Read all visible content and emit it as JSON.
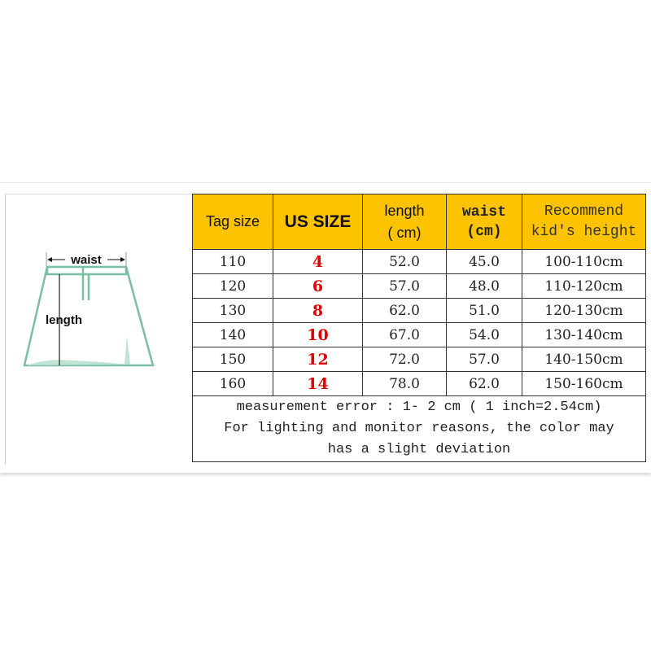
{
  "diagram": {
    "waist_label": "waist",
    "length_label": "length",
    "accent_color": "#7bbfa3"
  },
  "table": {
    "headers": {
      "tag_size": "Tag size",
      "us_size": "US SIZE",
      "length_l1": "length",
      "length_l2": "( cm)",
      "waist_l1": "waist",
      "waist_l2": "(cm)",
      "height_l1": "Recommend",
      "height_l2": "kid's height"
    },
    "header_color": "#fdc200",
    "us_size_color": "#e00000",
    "rows": [
      {
        "tag": "110",
        "us": "4",
        "length": "52.0",
        "waist": "45.0",
        "height": "100-110cm"
      },
      {
        "tag": "120",
        "us": "6",
        "length": "57.0",
        "waist": "48.0",
        "height": "110-120cm"
      },
      {
        "tag": "130",
        "us": "8",
        "length": "62.0",
        "waist": "51.0",
        "height": "120-130cm"
      },
      {
        "tag": "140",
        "us": "10",
        "length": "67.0",
        "waist": "54.0",
        "height": "130-140cm"
      },
      {
        "tag": "150",
        "us": "12",
        "length": "72.0",
        "waist": "57.0",
        "height": "140-150cm"
      },
      {
        "tag": "160",
        "us": "14",
        "length": "78.0",
        "waist": "62.0",
        "height": "150-160cm"
      }
    ],
    "note_l1": "measurement error : 1- 2 cm  ( 1 inch=2.54cm)",
    "note_l2": "For lighting and monitor reasons, the color may",
    "note_l3": "has a slight deviation"
  }
}
